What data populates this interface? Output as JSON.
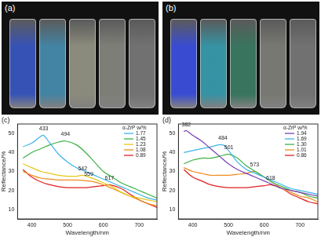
{
  "photos": [
    {
      "label": "(a)"
    },
    {
      "label": "(b)"
    }
  ],
  "chart_data": [
    {
      "type": "line",
      "title": "(c)",
      "x_label": "Wavelength/nm",
      "y_label": "Reflectance/%",
      "legend_title": "α-ZrP w/%",
      "legend": "upper right",
      "grid": false,
      "xlim": [
        360,
        750
      ],
      "xticks": [
        400,
        500,
        600,
        700
      ],
      "ylim": [
        5,
        55
      ],
      "yticks": [
        10,
        20,
        30,
        40,
        50
      ],
      "series": [
        {
          "name": "1.77",
          "color": "#3cb4e6",
          "x": [
            375,
            400,
            425,
            433,
            450,
            475,
            500,
            525,
            550,
            575,
            600,
            625,
            650,
            675,
            700,
            725,
            750
          ],
          "values": [
            43,
            45,
            48.5,
            49,
            45,
            39,
            35,
            32,
            30,
            28,
            26,
            24,
            22,
            20,
            18,
            16,
            15
          ]
        },
        {
          "name": "1.45",
          "color": "#3cb043",
          "x": [
            375,
            400,
            425,
            450,
            475,
            494,
            525,
            550,
            575,
            600,
            625,
            650,
            675,
            700,
            725,
            750
          ],
          "values": [
            37,
            40,
            42,
            44,
            45.5,
            46,
            44,
            40,
            35,
            30,
            27,
            24,
            22,
            20,
            18,
            16
          ]
        },
        {
          "name": "1.23",
          "color": "#e6c619",
          "x": [
            375,
            400,
            425,
            450,
            475,
            500,
            525,
            542,
            575,
            600,
            625,
            650,
            675,
            700,
            725,
            750
          ],
          "values": [
            34,
            32,
            30,
            29,
            28,
            27.5,
            27.5,
            28,
            26,
            24,
            22,
            19,
            17,
            16,
            15,
            14
          ]
        },
        {
          "name": "1.08",
          "color": "#f08c1e",
          "x": [
            375,
            400,
            425,
            450,
            475,
            500,
            525,
            559,
            575,
            600,
            625,
            650,
            675,
            700,
            725,
            750
          ],
          "values": [
            30,
            28,
            26.5,
            26,
            25.5,
            25.5,
            25.5,
            25,
            24.5,
            23,
            21,
            19,
            17,
            15,
            13,
            12
          ]
        },
        {
          "name": "0.89",
          "color": "#e02020",
          "x": [
            375,
            400,
            425,
            450,
            475,
            500,
            525,
            550,
            575,
            600,
            617,
            650,
            675,
            700,
            725,
            750
          ],
          "values": [
            31,
            27,
            24.5,
            23,
            22,
            21.5,
            21.5,
            21.5,
            22,
            22.5,
            23,
            21,
            18,
            15,
            13,
            11
          ]
        }
      ],
      "annotations": [
        {
          "x": 433,
          "y": 51,
          "label": "433"
        },
        {
          "x": 494,
          "y": 48,
          "label": "494"
        },
        {
          "x": 542,
          "y": 30,
          "label": "542"
        },
        {
          "x": 559,
          "y": 27,
          "label": "559"
        },
        {
          "x": 617,
          "y": 25,
          "label": "617"
        }
      ]
    },
    {
      "type": "line",
      "title": "(d)",
      "x_label": "Wavelength/nm",
      "y_label": "Reflectance/%",
      "legend_title": "α-ZrP w/%",
      "legend": "upper right",
      "grid": false,
      "xlim": [
        360,
        750
      ],
      "xticks": [
        400,
        500,
        600,
        700
      ],
      "ylim": [
        5,
        55
      ],
      "yticks": [
        10,
        20,
        30,
        40,
        50
      ],
      "series": [
        {
          "name": "1.94",
          "color": "#7a3fb5",
          "x": [
            375,
            382,
            400,
            425,
            450,
            475,
            500,
            525,
            550,
            575,
            600,
            625,
            650,
            675,
            700,
            725,
            750
          ],
          "values": [
            51,
            51.5,
            49,
            46,
            42,
            38,
            34,
            31,
            29,
            27,
            25,
            23,
            21,
            20,
            19,
            18,
            17
          ]
        },
        {
          "name": "1.69",
          "color": "#3cb4e6",
          "x": [
            375,
            400,
            425,
            450,
            484,
            500,
            525,
            550,
            575,
            600,
            625,
            650,
            675,
            700,
            725,
            750
          ],
          "values": [
            40,
            41,
            42,
            43,
            44,
            41,
            35,
            31,
            29,
            27,
            25,
            23,
            21,
            20,
            19,
            18
          ]
        },
        {
          "name": "1.30",
          "color": "#3cb043",
          "x": [
            375,
            400,
            425,
            450,
            475,
            501,
            525,
            550,
            575,
            600,
            625,
            650,
            675,
            700,
            725,
            750
          ],
          "values": [
            34,
            36,
            37,
            37,
            38,
            39,
            37,
            33,
            30,
            27,
            24,
            22,
            20,
            19,
            17,
            16
          ]
        },
        {
          "name": "1.01",
          "color": "#f08c1e",
          "x": [
            375,
            400,
            425,
            450,
            475,
            500,
            525,
            550,
            573,
            600,
            625,
            650,
            675,
            700,
            725,
            750
          ],
          "values": [
            32,
            30,
            29,
            28,
            28,
            28,
            28.5,
            29,
            30,
            27,
            24,
            21,
            19,
            17,
            16,
            14
          ]
        },
        {
          "name": "0.86",
          "color": "#e02020",
          "x": [
            375,
            400,
            425,
            450,
            475,
            500,
            525,
            550,
            575,
            600,
            618,
            650,
            675,
            700,
            725,
            750
          ],
          "values": [
            31,
            27,
            25,
            23,
            22,
            21.5,
            21.5,
            21.5,
            22,
            22.5,
            23,
            21,
            18,
            16,
            14,
            13
          ]
        }
      ],
      "annotations": [
        {
          "x": 382,
          "y": 53,
          "label": "382"
        },
        {
          "x": 484,
          "y": 46,
          "label": "484"
        },
        {
          "x": 501,
          "y": 41,
          "label": "501"
        },
        {
          "x": 573,
          "y": 32,
          "label": "573"
        },
        {
          "x": 618,
          "y": 25,
          "label": "618"
        }
      ]
    }
  ]
}
